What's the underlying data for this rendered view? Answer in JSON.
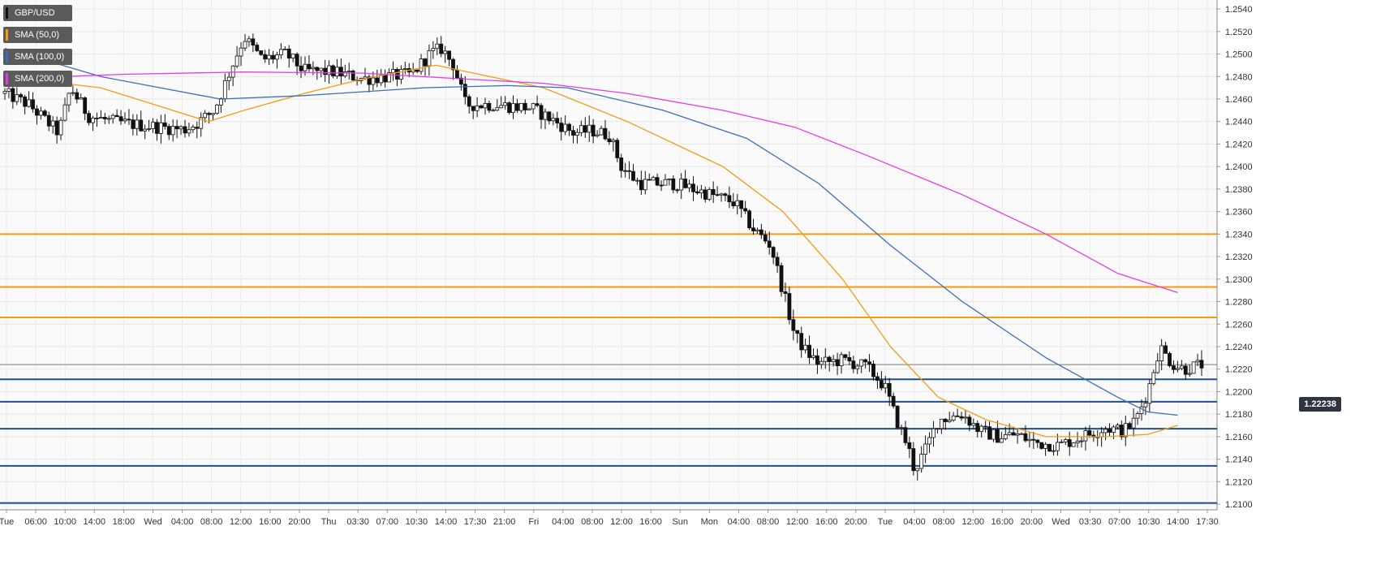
{
  "legend": [
    {
      "label": "GBP/USD",
      "color": "#111111"
    },
    {
      "label": "SMA (50,0)",
      "color": "#f39c12"
    },
    {
      "label": "SMA (100,0)",
      "color": "#3a6fb5"
    },
    {
      "label": "SMA (200,0)",
      "color": "#e23ce6"
    }
  ],
  "last_price_label": "1.22238",
  "chart_data": {
    "type": "candlestick",
    "symbol": "GBP/USD",
    "y_ticks": [
      "1.2540",
      "1.2520",
      "1.2500",
      "1.2480",
      "1.2460",
      "1.2440",
      "1.2420",
      "1.2400",
      "1.2380",
      "1.2360",
      "1.2340",
      "1.2320",
      "1.2300",
      "1.2280",
      "1.2260",
      "1.2240",
      "1.2220",
      "1.2200",
      "1.2180",
      "1.2160",
      "1.2140",
      "1.2120",
      "1.2100"
    ],
    "ylim": [
      1.2095,
      1.2548
    ],
    "x_ticks": [
      "Tue",
      "06:00",
      "10:00",
      "14:00",
      "18:00",
      "Wed",
      "04:00",
      "08:00",
      "12:00",
      "16:00",
      "20:00",
      "Thu",
      "03:30",
      "07:00",
      "10:30",
      "14:00",
      "17:30",
      "21:00",
      "Fri",
      "04:00",
      "08:00",
      "12:00",
      "16:00",
      "Sun",
      "Mon",
      "04:00",
      "08:00",
      "12:00",
      "16:00",
      "20:00",
      "Tue",
      "04:00",
      "08:00",
      "12:00",
      "16:00",
      "20:00",
      "Wed",
      "03:30",
      "07:00",
      "10:30",
      "14:00",
      "17:30"
    ],
    "horizontal_levels": {
      "resistance": [
        1.234,
        1.2293,
        1.2266
      ],
      "support": [
        1.2211,
        1.2191,
        1.2167,
        1.2134,
        1.2101
      ],
      "last_price_line": 1.2224
    },
    "price_path": [
      [
        0,
        1.2465
      ],
      [
        0.02,
        1.2455
      ],
      [
        0.035,
        1.244
      ],
      [
        0.045,
        1.243
      ],
      [
        0.055,
        1.247
      ],
      [
        0.07,
        1.2445
      ],
      [
        0.09,
        1.244
      ],
      [
        0.11,
        1.2437
      ],
      [
        0.13,
        1.2435
      ],
      [
        0.15,
        1.2433
      ],
      [
        0.16,
        1.2438
      ],
      [
        0.175,
        1.245
      ],
      [
        0.19,
        1.249
      ],
      [
        0.2,
        1.2515
      ],
      [
        0.215,
        1.2495
      ],
      [
        0.235,
        1.25
      ],
      [
        0.25,
        1.2485
      ],
      [
        0.275,
        1.2484
      ],
      [
        0.3,
        1.2478
      ],
      [
        0.32,
        1.248
      ],
      [
        0.34,
        1.2482
      ],
      [
        0.355,
        1.25
      ],
      [
        0.365,
        1.2505
      ],
      [
        0.375,
        1.249
      ],
      [
        0.385,
        1.2455
      ],
      [
        0.41,
        1.2455
      ],
      [
        0.44,
        1.2452
      ],
      [
        0.46,
        1.244
      ],
      [
        0.475,
        1.243
      ],
      [
        0.49,
        1.2432
      ],
      [
        0.505,
        1.2428
      ],
      [
        0.515,
        1.24
      ],
      [
        0.53,
        1.2385
      ],
      [
        0.56,
        1.2385
      ],
      [
        0.59,
        1.2375
      ],
      [
        0.61,
        1.2368
      ],
      [
        0.625,
        1.2345
      ],
      [
        0.64,
        1.233
      ],
      [
        0.65,
        1.229
      ],
      [
        0.66,
        1.225
      ],
      [
        0.67,
        1.2235
      ],
      [
        0.68,
        1.2225
      ],
      [
        0.7,
        1.2228
      ],
      [
        0.72,
        1.2222
      ],
      [
        0.735,
        1.2205
      ],
      [
        0.745,
        1.2175
      ],
      [
        0.755,
        1.215
      ],
      [
        0.76,
        1.213
      ],
      [
        0.77,
        1.215
      ],
      [
        0.78,
        1.2175
      ],
      [
        0.8,
        1.218
      ],
      [
        0.815,
        1.2165
      ],
      [
        0.83,
        1.216
      ],
      [
        0.845,
        1.2162
      ],
      [
        0.86,
        1.2155
      ],
      [
        0.88,
        1.2152
      ],
      [
        0.9,
        1.216
      ],
      [
        0.92,
        1.2168
      ],
      [
        0.935,
        1.2165
      ],
      [
        0.945,
        1.2175
      ],
      [
        0.955,
        1.22
      ],
      [
        0.965,
        1.224
      ],
      [
        0.975,
        1.2225
      ],
      [
        0.985,
        1.222
      ],
      [
        1,
        1.2224
      ]
    ],
    "series": [
      {
        "name": "SMA (50,0)",
        "color": "#f39c12",
        "points": [
          [
            0,
            1.248
          ],
          [
            0.08,
            1.247
          ],
          [
            0.17,
            1.244
          ],
          [
            0.2,
            1.245
          ],
          [
            0.25,
            1.2465
          ],
          [
            0.3,
            1.2478
          ],
          [
            0.36,
            1.249
          ],
          [
            0.45,
            1.247
          ],
          [
            0.52,
            1.244
          ],
          [
            0.6,
            1.24
          ],
          [
            0.65,
            1.236
          ],
          [
            0.7,
            1.23
          ],
          [
            0.74,
            1.224
          ],
          [
            0.78,
            1.2195
          ],
          [
            0.82,
            1.2175
          ],
          [
            0.87,
            1.216
          ],
          [
            0.92,
            1.216
          ],
          [
            0.955,
            1.2162
          ],
          [
            0.98,
            1.217
          ]
        ]
      },
      {
        "name": "SMA (100,0)",
        "color": "#3a6fb5",
        "points": [
          [
            0,
            1.2505
          ],
          [
            0.08,
            1.248
          ],
          [
            0.18,
            1.246
          ],
          [
            0.25,
            1.2463
          ],
          [
            0.35,
            1.247
          ],
          [
            0.42,
            1.2472
          ],
          [
            0.47,
            1.247
          ],
          [
            0.55,
            1.245
          ],
          [
            0.62,
            1.2425
          ],
          [
            0.68,
            1.2385
          ],
          [
            0.74,
            1.233
          ],
          [
            0.8,
            1.228
          ],
          [
            0.87,
            1.223
          ],
          [
            0.93,
            1.2195
          ],
          [
            0.955,
            1.2182
          ],
          [
            0.98,
            1.2179
          ]
        ]
      },
      {
        "name": "SMA (200,0)",
        "color": "#e23ce6",
        "points": [
          [
            0,
            1.2478
          ],
          [
            0.1,
            1.2482
          ],
          [
            0.2,
            1.2484
          ],
          [
            0.3,
            1.2483
          ],
          [
            0.38,
            1.2478
          ],
          [
            0.45,
            1.2474
          ],
          [
            0.52,
            1.2465
          ],
          [
            0.6,
            1.245
          ],
          [
            0.66,
            1.2435
          ],
          [
            0.72,
            1.241
          ],
          [
            0.8,
            1.2375
          ],
          [
            0.87,
            1.234
          ],
          [
            0.93,
            1.2305
          ],
          [
            0.98,
            1.2288
          ]
        ]
      }
    ]
  }
}
